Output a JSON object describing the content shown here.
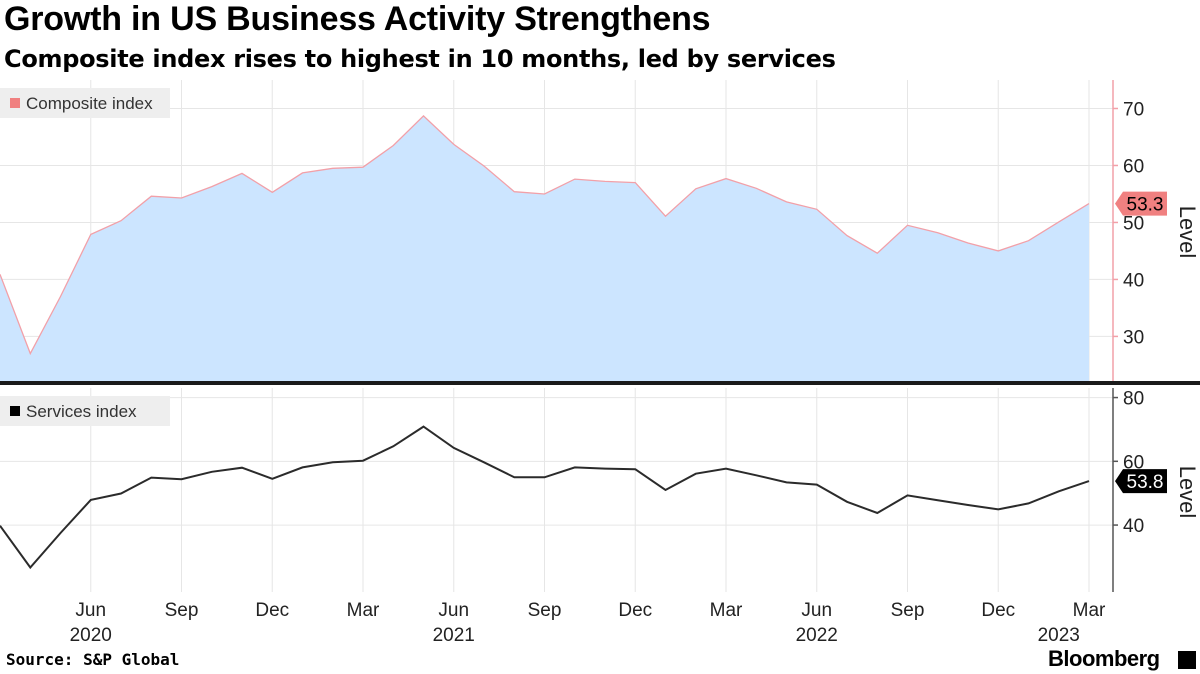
{
  "title": "Growth in US Business Activity Strengthens",
  "subtitle": "Composite index rises to highest in 10 months, led by services",
  "source": "Source: S&P Global",
  "brand": "Bloomberg",
  "colors": {
    "composite_fill": "#cce5ff",
    "composite_line": "#f2a0a8",
    "composite_badge": "#f08080",
    "services_line": "#2b2b2b",
    "services_badge": "#000000",
    "grid": "#e6e6e6"
  },
  "chart_data": [
    {
      "type": "area",
      "legend": "Composite index",
      "ylabel": "Level",
      "ylim": [
        22,
        75
      ],
      "yticks": [
        30,
        40,
        50,
        60,
        70
      ],
      "last_value_label": "53.3",
      "x": [
        "2020-03",
        "2020-04",
        "2020-05",
        "2020-06",
        "2020-07",
        "2020-08",
        "2020-09",
        "2020-10",
        "2020-11",
        "2020-12",
        "2021-01",
        "2021-02",
        "2021-03",
        "2021-04",
        "2021-05",
        "2021-06",
        "2021-07",
        "2021-08",
        "2021-09",
        "2021-10",
        "2021-11",
        "2021-12",
        "2022-01",
        "2022-02",
        "2022-03",
        "2022-04",
        "2022-05",
        "2022-06",
        "2022-07",
        "2022-08",
        "2022-09",
        "2022-10",
        "2022-11",
        "2022-12",
        "2023-01",
        "2023-02",
        "2023-03"
      ],
      "values": [
        40.9,
        27.0,
        37.0,
        47.9,
        50.3,
        54.6,
        54.3,
        56.3,
        58.6,
        55.3,
        58.7,
        59.5,
        59.7,
        63.5,
        68.7,
        63.7,
        59.9,
        55.4,
        55.0,
        57.6,
        57.2,
        57.0,
        51.1,
        55.9,
        57.7,
        56.0,
        53.6,
        52.3,
        47.7,
        44.6,
        49.5,
        48.2,
        46.4,
        45.0,
        46.8,
        50.1,
        53.3
      ]
    },
    {
      "type": "line",
      "legend": "Services index",
      "ylabel": "Level",
      "ylim": [
        19,
        83
      ],
      "yticks": [
        40,
        60,
        80
      ],
      "last_value_label": "53.8",
      "x": [
        "2020-03",
        "2020-04",
        "2020-05",
        "2020-06",
        "2020-07",
        "2020-08",
        "2020-09",
        "2020-10",
        "2020-11",
        "2020-12",
        "2021-01",
        "2021-02",
        "2021-03",
        "2021-04",
        "2021-05",
        "2021-06",
        "2021-07",
        "2021-08",
        "2021-09",
        "2021-10",
        "2021-11",
        "2021-12",
        "2022-01",
        "2022-02",
        "2022-03",
        "2022-04",
        "2022-05",
        "2022-06",
        "2022-07",
        "2022-08",
        "2022-09",
        "2022-10",
        "2022-11",
        "2022-12",
        "2023-01",
        "2023-02",
        "2023-03"
      ],
      "values": [
        39.8,
        26.7,
        37.5,
        47.9,
        49.9,
        54.9,
        54.4,
        56.7,
        58.0,
        54.5,
        58.1,
        59.7,
        60.2,
        64.7,
        70.9,
        64.2,
        59.7,
        55.0,
        55.0,
        58.1,
        57.7,
        57.5,
        51.0,
        56.1,
        57.7,
        55.6,
        53.4,
        52.7,
        47.3,
        43.8,
        49.3,
        47.8,
        46.3,
        44.9,
        46.8,
        50.6,
        53.8
      ]
    }
  ],
  "x_axis": {
    "ticks": [
      {
        "month": "2020-06",
        "label": "Jun"
      },
      {
        "month": "2020-09",
        "label": "Sep"
      },
      {
        "month": "2020-12",
        "label": "Dec"
      },
      {
        "month": "2021-03",
        "label": "Mar"
      },
      {
        "month": "2021-06",
        "label": "Jun"
      },
      {
        "month": "2021-09",
        "label": "Sep"
      },
      {
        "month": "2021-12",
        "label": "Dec"
      },
      {
        "month": "2022-03",
        "label": "Mar"
      },
      {
        "month": "2022-06",
        "label": "Jun"
      },
      {
        "month": "2022-09",
        "label": "Sep"
      },
      {
        "month": "2022-12",
        "label": "Dec"
      },
      {
        "month": "2023-03",
        "label": "Mar"
      }
    ],
    "years": [
      {
        "month": "2020-06",
        "label": "2020"
      },
      {
        "month": "2021-06",
        "label": "2021"
      },
      {
        "month": "2022-06",
        "label": "2022"
      },
      {
        "month": "2023-02",
        "label": "2023"
      }
    ]
  }
}
